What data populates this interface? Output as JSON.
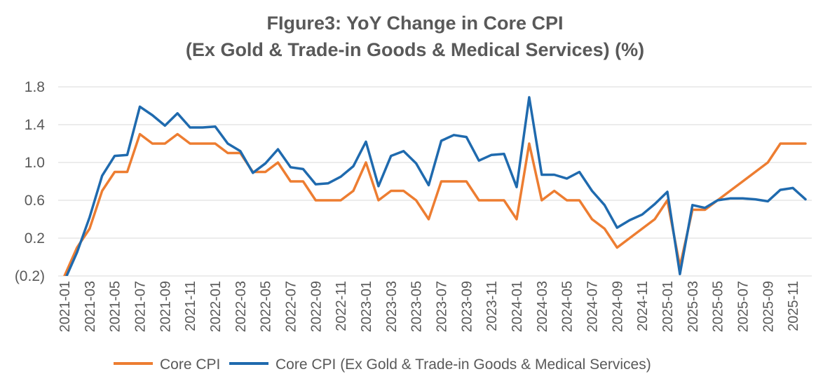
{
  "chart_data": {
    "type": "line",
    "title": "FIgure3: YoY Change in Core CPI",
    "subtitle": "(Ex Gold & Trade-in Goods & Medical Services) (%)",
    "xlabel": "",
    "ylabel": "",
    "ylim": [
      -0.2,
      1.8
    ],
    "yticks": [
      -0.2,
      0.2,
      0.6,
      1.0,
      1.4,
      1.8
    ],
    "ytick_labels": [
      "(0.2)",
      "0.2",
      "0.6",
      "1.0",
      "1.4",
      "1.8"
    ],
    "xtick_labels": [
      "2021-01",
      "2021-03",
      "2021-05",
      "2021-07",
      "2021-09",
      "2021-11",
      "2022-01",
      "2022-03",
      "2022-05",
      "2022-07",
      "2022-09",
      "2022-11",
      "2023-01",
      "2023-03",
      "2023-05",
      "2023-07",
      "2023-09",
      "2023-11",
      "2024-01",
      "2024-03",
      "2024-05",
      "2024-07",
      "2024-09",
      "2024-11",
      "2025-01",
      "2025-03",
      "2025-05",
      "2025-07",
      "2025-09",
      "2025-11"
    ],
    "grid": true,
    "legend": "bottom",
    "x": [
      "2021-01",
      "2021-02",
      "2021-03",
      "2021-04",
      "2021-05",
      "2021-06",
      "2021-07",
      "2021-08",
      "2021-09",
      "2021-10",
      "2021-11",
      "2021-12",
      "2022-01",
      "2022-02",
      "2022-03",
      "2022-04",
      "2022-05",
      "2022-06",
      "2022-07",
      "2022-08",
      "2022-09",
      "2022-10",
      "2022-11",
      "2022-12",
      "2023-01",
      "2023-02",
      "2023-03",
      "2023-04",
      "2023-05",
      "2023-06",
      "2023-07",
      "2023-08",
      "2023-09",
      "2023-10",
      "2023-11",
      "2023-12",
      "2024-01",
      "2024-02",
      "2024-03",
      "2024-04",
      "2024-05",
      "2024-06",
      "2024-07",
      "2024-08",
      "2024-09",
      "2024-10",
      "2024-11",
      "2024-12",
      "2025-01",
      "2025-02",
      "2025-03",
      "2025-04",
      "2025-05",
      "2025-06",
      "2025-07",
      "2025-08",
      "2025-09",
      "2025-10",
      "2025-11",
      "2025-12"
    ],
    "series": [
      {
        "name": "Core CPI",
        "color": "#ED7D31",
        "values": [
          -0.2,
          0.1,
          0.3,
          0.7,
          0.9,
          0.9,
          1.3,
          1.2,
          1.2,
          1.3,
          1.2,
          1.2,
          1.2,
          1.1,
          1.1,
          0.9,
          0.9,
          1.0,
          0.8,
          0.8,
          0.6,
          0.6,
          0.6,
          0.7,
          1.0,
          0.6,
          0.7,
          0.7,
          0.6,
          0.4,
          0.8,
          0.8,
          0.8,
          0.6,
          0.6,
          0.6,
          0.4,
          1.2,
          0.6,
          0.7,
          0.6,
          0.6,
          0.4,
          0.3,
          0.1,
          0.2,
          0.3,
          0.4,
          0.6,
          -0.1,
          0.5,
          0.5,
          0.6,
          0.7,
          0.8,
          0.9,
          1.0,
          1.2,
          1.2,
          1.2
        ]
      },
      {
        "name": "Core CPI (Ex Gold & Trade-in Goods & Medical Services)",
        "color": "#1F6AAE",
        "values": [
          -0.25,
          0.05,
          0.42,
          0.86,
          1.07,
          1.08,
          1.59,
          1.5,
          1.39,
          1.52,
          1.37,
          1.37,
          1.38,
          1.2,
          1.12,
          0.89,
          0.99,
          1.14,
          0.95,
          0.93,
          0.77,
          0.78,
          0.85,
          0.96,
          1.22,
          0.75,
          1.07,
          1.12,
          0.99,
          0.76,
          1.23,
          1.29,
          1.27,
          1.02,
          1.08,
          1.09,
          0.74,
          1.69,
          0.87,
          0.87,
          0.83,
          0.9,
          0.7,
          0.55,
          0.31,
          0.39,
          0.45,
          0.56,
          0.69,
          -0.18,
          0.55,
          0.52,
          0.6,
          0.62,
          0.62,
          0.61,
          0.59,
          0.71,
          0.73,
          0.61
        ]
      }
    ]
  }
}
